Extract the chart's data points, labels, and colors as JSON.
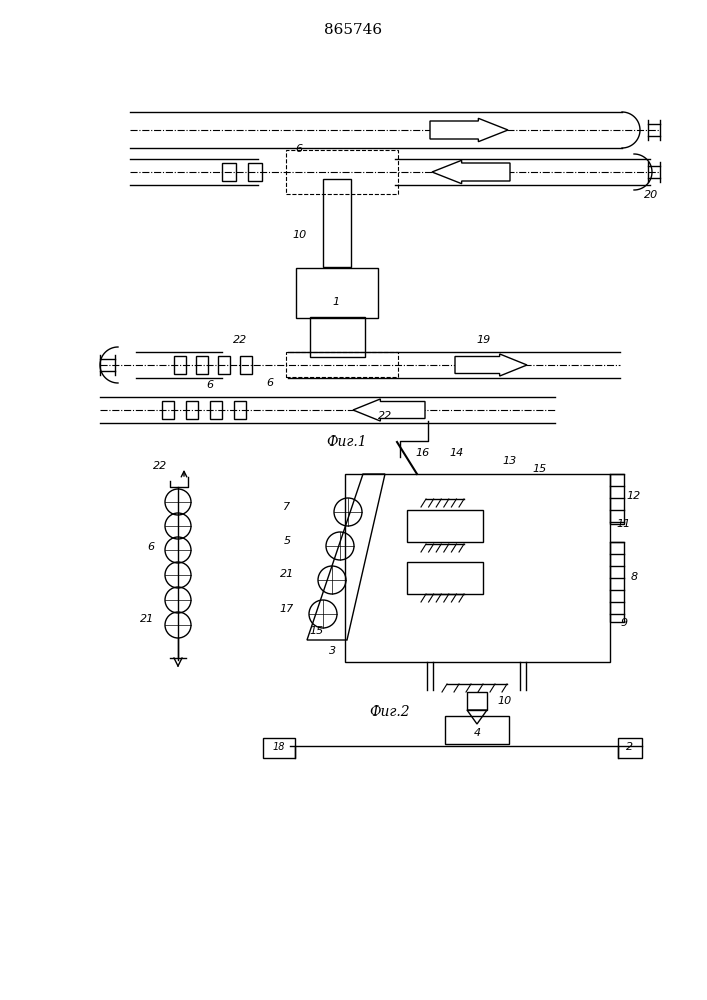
{
  "title": "865746",
  "fig1_label": "Фиг.1",
  "fig2_label": "Фиг.2",
  "bg_color": "#ffffff",
  "line_color": "#000000",
  "lw": 1.0
}
